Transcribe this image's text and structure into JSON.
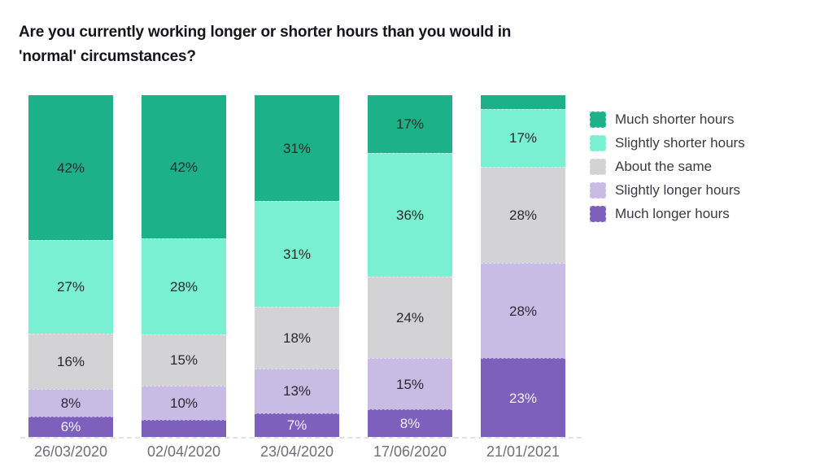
{
  "title": "Are you currently working longer or shorter hours than you would in 'normal' circumstances?",
  "chart_data": {
    "type": "bar",
    "variant": "stacked-percent",
    "title": "Are you currently working longer or shorter hours than you would in 'normal' circumstances?",
    "xlabel": "",
    "ylabel": "",
    "ylim": [
      0,
      100
    ],
    "grid": false,
    "legend_position": "right",
    "categories": [
      "26/03/2020",
      "02/04/2020",
      "23/04/2020",
      "17/06/2020",
      "21/01/2021"
    ],
    "series": [
      {
        "name": "Much shorter hours",
        "color": "#1db189",
        "label_color": "#28282e",
        "values": [
          42,
          42,
          31,
          17,
          4
        ],
        "labels": [
          "42%",
          "42%",
          "31%",
          "17%",
          ""
        ]
      },
      {
        "name": "Slightly shorter hours",
        "color": "#7af0d2",
        "label_color": "#28282e",
        "values": [
          27,
          28,
          31,
          36,
          17
        ],
        "labels": [
          "27%",
          "28%",
          "31%",
          "36%",
          "17%"
        ]
      },
      {
        "name": "About the same",
        "color": "#d3d2d4",
        "label_color": "#28282e",
        "values": [
          16,
          15,
          18,
          24,
          28
        ],
        "labels": [
          "16%",
          "15%",
          "18%",
          "24%",
          "28%"
        ]
      },
      {
        "name": "Slightly longer hours",
        "color": "#c8bce4",
        "label_color": "#28282e",
        "values": [
          8,
          10,
          13,
          15,
          28
        ],
        "labels": [
          "8%",
          "10%",
          "13%",
          "15%",
          "28%"
        ]
      },
      {
        "name": "Much longer hours",
        "color": "#7d5fbc",
        "label_color": "#f5f3f9",
        "values": [
          6,
          5,
          7,
          8,
          23
        ],
        "labels": [
          "6%",
          "",
          "7%",
          "8%",
          "23%"
        ]
      }
    ]
  }
}
